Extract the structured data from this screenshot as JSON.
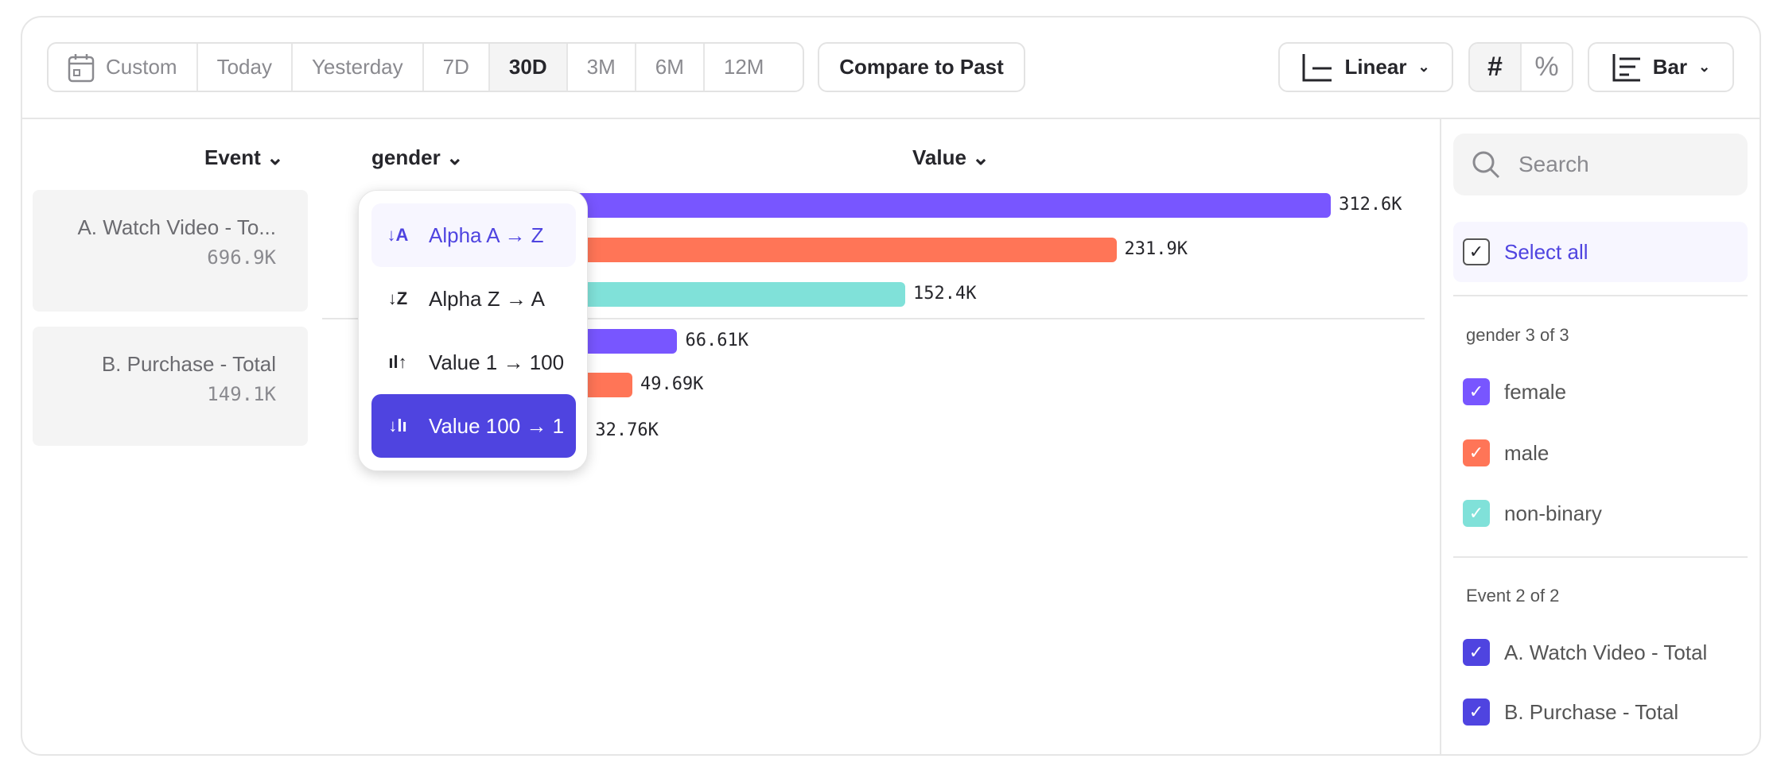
{
  "toolbar": {
    "date_ranges": [
      {
        "label": "Custom",
        "icon": "calendar-icon"
      },
      {
        "label": "Today"
      },
      {
        "label": "Yesterday"
      },
      {
        "label": "7D"
      },
      {
        "label": "30D",
        "active": true
      },
      {
        "label": "3M"
      },
      {
        "label": "6M"
      },
      {
        "label": "12M"
      }
    ],
    "compare_label": "Compare to Past",
    "scale_label": "Linear",
    "number_toggle": [
      "#",
      "%"
    ],
    "chart_type_label": "Bar"
  },
  "table": {
    "headers": {
      "event": "Event",
      "gender": "gender",
      "value": "Value"
    },
    "events": [
      {
        "name": "A. Watch Video - To...",
        "total": "696.9K"
      },
      {
        "name": "B. Purchase - Total",
        "total": "149.1K"
      }
    ]
  },
  "sort_menu": {
    "items": [
      {
        "label": "Alpha A → Z",
        "icon": "sort-alpha-asc-icon",
        "glyph": "↓A",
        "state": "hover"
      },
      {
        "label": "Alpha Z → A",
        "icon": "sort-alpha-desc-icon",
        "glyph": "↓Z"
      },
      {
        "label": "Value 1 → 100",
        "icon": "sort-value-asc-icon",
        "glyph": "ıl↑"
      },
      {
        "label": "Value 100 → 1",
        "icon": "sort-value-desc-icon",
        "glyph": "↓lı",
        "state": "selected"
      }
    ]
  },
  "chart_data": {
    "type": "bar",
    "orientation": "horizontal",
    "groups": [
      "A. Watch Video - Total",
      "B. Purchase - Total"
    ],
    "series": [
      {
        "name": "female",
        "color": "#7856FF",
        "values": [
          312.6,
          66.61
        ],
        "labels": [
          "312.6K",
          "66.61K"
        ]
      },
      {
        "name": "male",
        "color": "#FF7557",
        "values": [
          231.9,
          49.69
        ],
        "labels": [
          "231.9K",
          "49.69K"
        ]
      },
      {
        "name": "non-binary",
        "color": "#80E1D9",
        "values": [
          152.4,
          32.76
        ],
        "labels": [
          "152.4K",
          "32.76K"
        ]
      }
    ]
  },
  "legend": {
    "search_placeholder": "Search",
    "select_all": "Select all",
    "gender_heading": "gender 3 of 3",
    "gender_items": [
      {
        "label": "female",
        "color": "#7856FF"
      },
      {
        "label": "male",
        "color": "#FF7557"
      },
      {
        "label": "non-binary",
        "color": "#80E1D9"
      }
    ],
    "event_heading": "Event 2 of 2",
    "event_items": [
      {
        "label": "A. Watch Video - Total",
        "color": "#4F44E0"
      },
      {
        "label": "B. Purchase - Total",
        "color": "#4F44E0"
      }
    ]
  },
  "colors": {
    "accent": "#4F44E0"
  }
}
